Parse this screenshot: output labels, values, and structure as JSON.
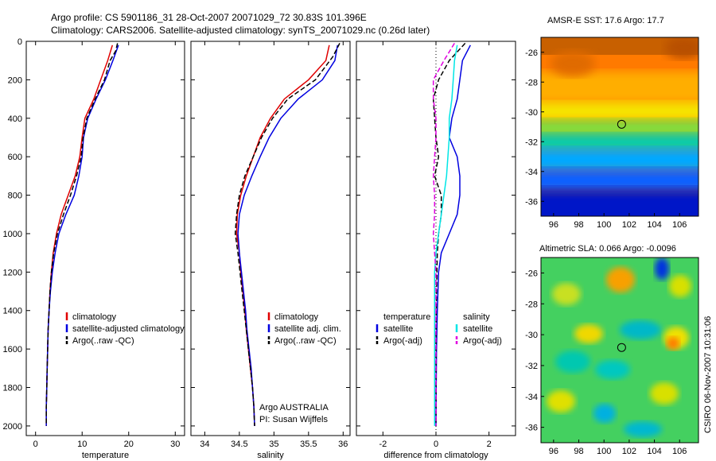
{
  "title_line1": "Argo profile: CS 5901186_31 28-Oct-2007 20071029_72 30.83S 101.396E",
  "title_line2": "Climatology: CARS2006. Satellite-adjusted climatology: synTS_20071029.nc (0.26d later)",
  "side_label": "CSIRO 06-Nov-2007 10:31:06",
  "credit_line1": "Argo AUSTRALIA",
  "credit_line2": "PI: Susan Wijffels",
  "colors": {
    "red": "#e00000",
    "blue": "#0000e0",
    "black": "#000000",
    "cyan": "#00e6e6",
    "magenta": "#e000e0"
  },
  "chart_data": [
    {
      "type": "line",
      "xlabel": "temperature",
      "xlim": [
        -2,
        32
      ],
      "ylim": [
        2050,
        0
      ],
      "xticks": [
        "0",
        "10",
        "20",
        "30"
      ],
      "yticks": [
        "0",
        "200",
        "400",
        "600",
        "800",
        "1000",
        "1200",
        "1400",
        "1600",
        "1800",
        "2000"
      ],
      "legend": [
        "climatology",
        "satellite-adjusted climatology",
        "Argo(..raw -QC)"
      ],
      "series": [
        {
          "name": "climatology",
          "color": "red",
          "dash": false,
          "points": [
            [
              16.5,
              20
            ],
            [
              15.5,
              100
            ],
            [
              14,
              200
            ],
            [
              12.5,
              300
            ],
            [
              10.6,
              400
            ],
            [
              10,
              500
            ],
            [
              9.5,
              600
            ],
            [
              8.5,
              700
            ],
            [
              7,
              800
            ],
            [
              5.5,
              900
            ],
            [
              4.5,
              1000
            ],
            [
              3.8,
              1100
            ],
            [
              3.4,
              1200
            ],
            [
              3.1,
              1300
            ],
            [
              2.9,
              1400
            ],
            [
              2.7,
              1500
            ],
            [
              2.6,
              1600
            ],
            [
              2.5,
              1700
            ],
            [
              2.4,
              1800
            ],
            [
              2.3,
              1900
            ],
            [
              2.3,
              2000
            ]
          ]
        },
        {
          "name": "satellite-adjusted climatology",
          "color": "blue",
          "dash": false,
          "points": [
            [
              17.8,
              20
            ],
            [
              16.6,
              100
            ],
            [
              15,
              200
            ],
            [
              13,
              300
            ],
            [
              11.2,
              400
            ],
            [
              10.3,
              500
            ],
            [
              10,
              600
            ],
            [
              9.3,
              700
            ],
            [
              8.3,
              800
            ],
            [
              6.5,
              900
            ],
            [
              5,
              1000
            ],
            [
              4.2,
              1100
            ],
            [
              3.6,
              1200
            ],
            [
              3.2,
              1300
            ],
            [
              2.9,
              1400
            ],
            [
              2.7,
              1500
            ],
            [
              2.6,
              1600
            ],
            [
              2.5,
              1700
            ],
            [
              2.4,
              1800
            ],
            [
              2.3,
              1900
            ],
            [
              2.3,
              2000
            ]
          ]
        },
        {
          "name": "Argo(..raw -QC)",
          "color": "black",
          "dash": true,
          "points": [
            [
              17.6,
              10
            ],
            [
              17.2,
              50
            ],
            [
              16,
              100
            ],
            [
              14.8,
              200
            ],
            [
              12.8,
              300
            ],
            [
              11,
              400
            ],
            [
              10.2,
              500
            ],
            [
              9.8,
              600
            ],
            [
              8.8,
              700
            ],
            [
              7.5,
              800
            ],
            [
              6,
              900
            ],
            [
              4.7,
              1000
            ],
            [
              3.9,
              1100
            ],
            [
              3.4,
              1200
            ],
            [
              3.1,
              1300
            ],
            [
              2.9,
              1400
            ],
            [
              2.7,
              1500
            ],
            [
              2.6,
              1600
            ],
            [
              2.5,
              1700
            ],
            [
              2.4,
              1800
            ],
            [
              2.3,
              1900
            ],
            [
              2.3,
              2000
            ]
          ]
        }
      ]
    },
    {
      "type": "line",
      "xlabel": "salinity",
      "xlim": [
        33.8,
        36.1
      ],
      "ylim": [
        2050,
        0
      ],
      "xticks": [
        "34",
        "34.5",
        "35",
        "35.5",
        "36"
      ],
      "legend": [
        "climatology",
        "satellite adj. clim.",
        "Argo(..raw -QC)"
      ],
      "series": [
        {
          "name": "climatology",
          "color": "red",
          "dash": false,
          "points": [
            [
              35.8,
              20
            ],
            [
              35.75,
              100
            ],
            [
              35.5,
              200
            ],
            [
              35.15,
              300
            ],
            [
              34.95,
              400
            ],
            [
              34.8,
              500
            ],
            [
              34.7,
              600
            ],
            [
              34.6,
              700
            ],
            [
              34.52,
              800
            ],
            [
              34.47,
              900
            ],
            [
              34.46,
              1000
            ],
            [
              34.5,
              1100
            ],
            [
              34.52,
              1200
            ],
            [
              34.55,
              1300
            ],
            [
              34.58,
              1400
            ],
            [
              34.6,
              1500
            ],
            [
              34.63,
              1600
            ],
            [
              34.66,
              1700
            ],
            [
              34.69,
              1800
            ],
            [
              34.71,
              1900
            ],
            [
              34.72,
              2000
            ]
          ]
        },
        {
          "name": "satellite adj. clim.",
          "color": "blue",
          "dash": false,
          "points": [
            [
              35.92,
              20
            ],
            [
              35.88,
              100
            ],
            [
              35.7,
              200
            ],
            [
              35.35,
              300
            ],
            [
              35.1,
              400
            ],
            [
              34.93,
              500
            ],
            [
              34.8,
              600
            ],
            [
              34.68,
              700
            ],
            [
              34.57,
              800
            ],
            [
              34.5,
              900
            ],
            [
              34.48,
              1000
            ],
            [
              34.5,
              1100
            ],
            [
              34.53,
              1200
            ],
            [
              34.56,
              1300
            ],
            [
              34.59,
              1400
            ],
            [
              34.61,
              1500
            ],
            [
              34.64,
              1600
            ],
            [
              34.67,
              1700
            ],
            [
              34.69,
              1800
            ],
            [
              34.71,
              1900
            ],
            [
              34.72,
              2000
            ]
          ]
        },
        {
          "name": "Argo(..raw -QC)",
          "color": "black",
          "dash": true,
          "points": [
            [
              35.95,
              10
            ],
            [
              35.85,
              80
            ],
            [
              35.6,
              200
            ],
            [
              35.2,
              300
            ],
            [
              34.98,
              400
            ],
            [
              34.82,
              500
            ],
            [
              34.7,
              600
            ],
            [
              34.58,
              700
            ],
            [
              34.5,
              800
            ],
            [
              34.46,
              900
            ],
            [
              34.44,
              1000
            ],
            [
              34.48,
              1100
            ],
            [
              34.51,
              1200
            ],
            [
              34.54,
              1300
            ],
            [
              34.57,
              1400
            ],
            [
              34.6,
              1500
            ],
            [
              34.63,
              1600
            ],
            [
              34.66,
              1700
            ],
            [
              34.69,
              1800
            ],
            [
              34.71,
              1900
            ],
            [
              34.72,
              2000
            ]
          ]
        }
      ]
    },
    {
      "type": "line",
      "xlabel": "difference from climatology",
      "xlim": [
        -3,
        3
      ],
      "ylim": [
        2050,
        0
      ],
      "xticks": [
        "-2",
        "0",
        "2"
      ],
      "legend_groups": [
        {
          "title": "temperature",
          "entries": [
            "satellite",
            "Argo(-adj)"
          ]
        },
        {
          "title": "salinity",
          "entries": [
            "satellite",
            "Argo(-adj)"
          ]
        }
      ],
      "series": [
        {
          "name": "temperature satellite",
          "color": "blue",
          "dash": false,
          "points": [
            [
              1.3,
              20
            ],
            [
              1.0,
              100
            ],
            [
              0.9,
              200
            ],
            [
              0.8,
              300
            ],
            [
              0.6,
              400
            ],
            [
              0.5,
              500
            ],
            [
              0.8,
              600
            ],
            [
              0.9,
              700
            ],
            [
              0.9,
              800
            ],
            [
              0.8,
              900
            ],
            [
              0.5,
              1000
            ],
            [
              0.2,
              1100
            ],
            [
              0.1,
              1200
            ],
            [
              0.05,
              1400
            ],
            [
              0.02,
              1600
            ],
            [
              0.01,
              1800
            ],
            [
              0,
              2000
            ]
          ]
        },
        {
          "name": "temperature Argo(-adj)",
          "color": "black",
          "dash": true,
          "points": [
            [
              1.1,
              10
            ],
            [
              0.5,
              100
            ],
            [
              0.1,
              200
            ],
            [
              -0.1,
              300
            ],
            [
              -0.05,
              400
            ],
            [
              0,
              500
            ],
            [
              0.1,
              600
            ],
            [
              -0.05,
              700
            ],
            [
              0.2,
              800
            ],
            [
              0.2,
              900
            ],
            [
              0.1,
              1000
            ],
            [
              0.05,
              1100
            ],
            [
              0.02,
              1300
            ],
            [
              0,
              1500
            ],
            [
              0,
              1700
            ],
            [
              0,
              2000
            ]
          ]
        },
        {
          "name": "salinity satellite",
          "color": "cyan",
          "dash": false,
          "points": [
            [
              0.8,
              20
            ],
            [
              0.7,
              100
            ],
            [
              0.65,
              200
            ],
            [
              0.6,
              300
            ],
            [
              0.5,
              400
            ],
            [
              0.5,
              500
            ],
            [
              0.45,
              600
            ],
            [
              0.4,
              700
            ],
            [
              0.3,
              800
            ],
            [
              0.2,
              900
            ],
            [
              0.1,
              1000
            ],
            [
              0,
              1100
            ],
            [
              -0.05,
              1200
            ],
            [
              -0.05,
              1400
            ],
            [
              -0.05,
              1600
            ],
            [
              -0.05,
              1800
            ],
            [
              -0.05,
              2000
            ]
          ]
        },
        {
          "name": "salinity Argo(-adj)",
          "color": "magenta",
          "dash": true,
          "points": [
            [
              0.7,
              10
            ],
            [
              0.3,
              100
            ],
            [
              -0.1,
              200
            ],
            [
              -0.1,
              300
            ],
            [
              0,
              400
            ],
            [
              0,
              500
            ],
            [
              -0.05,
              600
            ],
            [
              -0.1,
              700
            ],
            [
              -0.05,
              800
            ],
            [
              -0.05,
              900
            ],
            [
              -0.1,
              1000
            ],
            [
              -0.05,
              1100
            ],
            [
              0,
              1200
            ],
            [
              0,
              1400
            ],
            [
              0,
              1600
            ],
            [
              0,
              1800
            ],
            [
              0,
              2000
            ]
          ]
        }
      ]
    },
    {
      "type": "heatmap",
      "title": "AMSR-E SST: 17.6 Argo: 17.7",
      "xticks": [
        "96",
        "98",
        "100",
        "102",
        "104",
        "106"
      ],
      "yticks": [
        "-26",
        "-28",
        "-30",
        "-32",
        "-34",
        "-36"
      ],
      "xlim": [
        95,
        107.5
      ],
      "ylim": [
        -37,
        -25
      ],
      "marker": [
        101.4,
        -30.83
      ]
    },
    {
      "type": "heatmap",
      "title": "Altimetric SLA: 0.066 Argo: -0.0096",
      "xticks": [
        "96",
        "98",
        "100",
        "102",
        "104",
        "106"
      ],
      "yticks": [
        "-26",
        "-28",
        "-30",
        "-32",
        "-34",
        "-36"
      ],
      "xlim": [
        95,
        107.5
      ],
      "ylim": [
        -37,
        -25
      ],
      "marker": [
        101.4,
        -30.83
      ]
    }
  ]
}
